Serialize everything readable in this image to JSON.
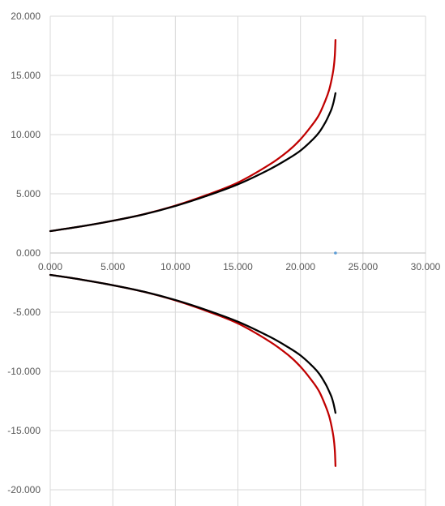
{
  "chart_data": {
    "type": "scatter",
    "title": "",
    "xlabel": "",
    "ylabel": "",
    "xlim": [
      0,
      30
    ],
    "ylim": [
      -20,
      20
    ],
    "grid": true,
    "legend": "none",
    "x_ticks": [
      "0.000",
      "5.000",
      "10.000",
      "15.000",
      "20.000",
      "25.000",
      "30.000"
    ],
    "y_ticks": [
      "20.000",
      "15.000",
      "10.000",
      "5.000",
      "0.000",
      "-5.000",
      "-10.000",
      "-15.000",
      "-20.000"
    ],
    "series": [
      {
        "color": "#c00000",
        "x": [
          0,
          2.5,
          5,
          7.5,
          10,
          12.5,
          15,
          17.5,
          19,
          20,
          21,
          21.5,
          22,
          22.3,
          22.5,
          22.65,
          22.75,
          22.8
        ],
        "y": [
          1.85,
          2.25,
          2.72,
          3.28,
          4.0,
          4.9,
          5.95,
          7.45,
          8.6,
          9.6,
          10.9,
          11.7,
          12.9,
          13.8,
          14.7,
          15.6,
          16.7,
          18.0
        ]
      },
      {
        "color": "#000000",
        "x": [
          0,
          2.5,
          5,
          7.5,
          10,
          12.5,
          15,
          17.5,
          19,
          20,
          21,
          21.5,
          22,
          22.3,
          22.5,
          22.65,
          22.8
        ],
        "y": [
          1.85,
          2.25,
          2.72,
          3.27,
          3.97,
          4.82,
          5.8,
          7.05,
          7.95,
          8.65,
          9.6,
          10.2,
          11.05,
          11.7,
          12.2,
          12.75,
          13.5
        ]
      },
      {
        "color": "#c00000",
        "x": [
          0,
          2.5,
          5,
          7.5,
          10,
          12.5,
          15,
          17.5,
          19,
          20,
          21,
          21.5,
          22,
          22.3,
          22.5,
          22.65,
          22.75,
          22.8
        ],
        "y": [
          -1.85,
          -2.25,
          -2.72,
          -3.28,
          -4.0,
          -4.9,
          -5.95,
          -7.45,
          -8.6,
          -9.6,
          -10.9,
          -11.7,
          -12.9,
          -13.8,
          -14.7,
          -15.6,
          -16.7,
          -18.0
        ]
      },
      {
        "color": "#000000",
        "x": [
          0,
          2.5,
          5,
          7.5,
          10,
          12.5,
          15,
          17.5,
          19,
          20,
          21,
          21.5,
          22,
          22.3,
          22.5,
          22.65,
          22.8
        ],
        "y": [
          -1.85,
          -2.25,
          -2.72,
          -3.27,
          -3.97,
          -4.82,
          -5.8,
          -7.05,
          -7.95,
          -8.65,
          -9.6,
          -10.2,
          -11.05,
          -11.7,
          -12.2,
          -12.75,
          -13.5
        ]
      }
    ],
    "points": [
      {
        "x": 22.8,
        "y": 0,
        "color": "#5b9bd5"
      }
    ]
  }
}
